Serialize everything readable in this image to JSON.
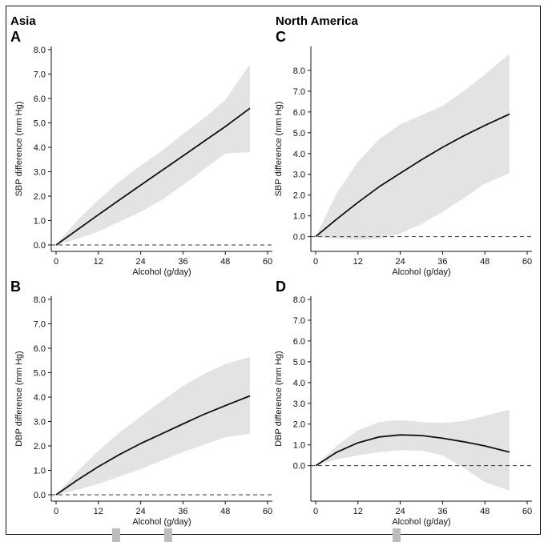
{
  "regions": [
    "Asia",
    "North America"
  ],
  "chart_data": [
    {
      "type": "line",
      "panel": "A",
      "region": "Asia",
      "xlabel": "Alcohol (g/day)",
      "ylabel": "SBP difference (mm Hg)",
      "xlim": [
        0,
        60
      ],
      "ylim": [
        0,
        8
      ],
      "xticks": [
        0,
        12,
        24,
        36,
        48,
        60
      ],
      "yticks": [
        0,
        1,
        2,
        3,
        4,
        5,
        6,
        7,
        8
      ],
      "xtick_labels": [
        "0",
        "12",
        "24",
        "36",
        "48",
        "60"
      ],
      "ytick_labels": [
        "0.0",
        "1.0",
        "2.0",
        "3.0",
        "4.0",
        "5.0",
        "6.0",
        "7.0",
        "8.0"
      ],
      "reference_line": 0,
      "x": [
        0,
        6,
        12,
        18,
        24,
        30,
        36,
        42,
        48,
        55
      ],
      "estimate": [
        0,
        0.62,
        1.24,
        1.85,
        2.45,
        3.05,
        3.65,
        4.25,
        4.85,
        5.6
      ],
      "ci_lower": [
        0,
        0.25,
        0.55,
        0.95,
        1.35,
        1.85,
        2.45,
        3.1,
        3.75,
        3.8
      ],
      "ci_upper": [
        0,
        1.0,
        1.85,
        2.6,
        3.25,
        3.85,
        4.55,
        5.2,
        5.95,
        7.4
      ]
    },
    {
      "type": "line",
      "panel": "B",
      "region": "Asia",
      "xlabel": "Alcohol (g/day)",
      "ylabel": "DBP difference (mm Hg)",
      "xlim": [
        0,
        60
      ],
      "ylim": [
        0,
        8
      ],
      "xticks": [
        0,
        12,
        24,
        36,
        48,
        60
      ],
      "yticks": [
        0,
        1,
        2,
        3,
        4,
        5,
        6,
        7,
        8
      ],
      "xtick_labels": [
        "0",
        "12",
        "24",
        "36",
        "48",
        "60"
      ],
      "ytick_labels": [
        "0.0",
        "1.0",
        "2.0",
        "3.0",
        "4.0",
        "5.0",
        "6.0",
        "7.0",
        "8.0"
      ],
      "reference_line": 0,
      "x": [
        0,
        6,
        12,
        18,
        24,
        30,
        36,
        42,
        48,
        55
      ],
      "estimate": [
        0,
        0.6,
        1.15,
        1.65,
        2.1,
        2.5,
        2.9,
        3.3,
        3.65,
        4.05
      ],
      "ci_lower": [
        0,
        0.2,
        0.45,
        0.75,
        1.05,
        1.4,
        1.75,
        2.05,
        2.35,
        2.5
      ],
      "ci_upper": [
        0,
        0.95,
        1.8,
        2.55,
        3.2,
        3.85,
        4.45,
        4.95,
        5.35,
        5.65
      ]
    },
    {
      "type": "line",
      "panel": "C",
      "region": "North America",
      "xlabel": "Alcohol (g/day)",
      "ylabel": "SBP difference (mm Hg)",
      "xlim": [
        0,
        60
      ],
      "ylim": [
        -0.4,
        9
      ],
      "xticks": [
        0,
        12,
        24,
        36,
        48,
        60
      ],
      "yticks": [
        0,
        1,
        2,
        3,
        4,
        5,
        6,
        7,
        8
      ],
      "xtick_labels": [
        "0",
        "12",
        "24",
        "36",
        "48",
        "60"
      ],
      "ytick_labels": [
        "0.0",
        "1.0",
        "2.0",
        "3.0",
        "4.0",
        "5.0",
        "6.0",
        "7.0",
        "8.0"
      ],
      "reference_line": 0,
      "x": [
        0,
        6,
        12,
        18,
        24,
        30,
        36,
        42,
        48,
        55
      ],
      "estimate": [
        0,
        0.85,
        1.65,
        2.4,
        3.05,
        3.7,
        4.3,
        4.85,
        5.35,
        5.9
      ],
      "ci_lower": [
        0,
        -0.1,
        -0.15,
        -0.1,
        0.15,
        0.6,
        1.2,
        1.85,
        2.55,
        3.05
      ],
      "ci_upper": [
        0,
        2.1,
        3.6,
        4.7,
        5.4,
        5.85,
        6.3,
        7.0,
        7.8,
        8.8
      ]
    },
    {
      "type": "line",
      "panel": "D",
      "region": "North America",
      "xlabel": "Alcohol (g/day)",
      "ylabel": "DBP difference (mm Hg)",
      "xlim": [
        0,
        60
      ],
      "ylim": [
        -1.4,
        8
      ],
      "xticks": [
        0,
        12,
        24,
        36,
        48,
        60
      ],
      "yticks": [
        0,
        1,
        2,
        3,
        4,
        5,
        6,
        7,
        8
      ],
      "xtick_labels": [
        "0",
        "12",
        "24",
        "36",
        "48",
        "60"
      ],
      "ytick_labels": [
        "0.0",
        "1.0",
        "2.0",
        "3.0",
        "4.0",
        "5.0",
        "6.0",
        "7.0",
        "8.0"
      ],
      "reference_line": 0,
      "x": [
        0,
        6,
        12,
        18,
        24,
        30,
        36,
        42,
        48,
        55
      ],
      "estimate": [
        0,
        0.65,
        1.1,
        1.38,
        1.48,
        1.45,
        1.32,
        1.15,
        0.95,
        0.65
      ],
      "ci_lower": [
        0,
        0.3,
        0.5,
        0.65,
        0.75,
        0.72,
        0.5,
        -0.1,
        -0.8,
        -1.2
      ],
      "ci_upper": [
        0,
        0.95,
        1.7,
        2.1,
        2.2,
        2.1,
        2.05,
        2.15,
        2.4,
        2.7
      ]
    }
  ]
}
